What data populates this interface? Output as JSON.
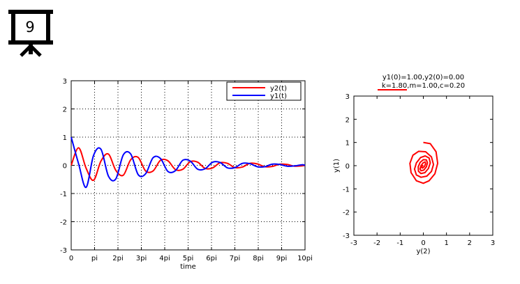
{
  "slide_badge": {
    "number": "9",
    "icon": "projector-screen-icon"
  },
  "chart_data": [
    {
      "type": "line",
      "xlabel": "time",
      "ylabel": "",
      "xlim": [
        0,
        31.416
      ],
      "ylim": [
        -3,
        3
      ],
      "x_tick_labels": [
        "0",
        "pi",
        "2pi",
        "3pi",
        "4pi",
        "5pi",
        "6pi",
        "7pi",
        "8pi",
        "9pi",
        "10pi"
      ],
      "y_tick_labels": [
        "-3",
        "-2",
        "-1",
        "0",
        "1",
        "2",
        "3"
      ],
      "grid": true,
      "legend_position": "top-right",
      "series": [
        {
          "name": "y2(t)",
          "color": "#ff0000",
          "x": [
            0,
            1,
            2,
            3,
            4,
            5,
            6,
            7,
            8,
            9,
            10,
            11,
            12,
            13,
            14,
            15,
            16,
            17,
            18,
            19,
            20,
            21,
            22,
            23,
            24,
            25,
            26,
            27,
            28,
            29,
            30,
            31,
            31.416
          ],
          "values": [
            0.0,
            0.62,
            -0.1,
            -0.53,
            0.15,
            0.4,
            -0.18,
            -0.35,
            0.2,
            0.28,
            -0.2,
            -0.2,
            0.18,
            0.16,
            -0.15,
            -0.14,
            0.13,
            0.11,
            -0.11,
            -0.09,
            0.09,
            0.07,
            -0.08,
            -0.06,
            0.07,
            0.05,
            -0.05,
            -0.04,
            0.04,
            0.03,
            -0.03,
            -0.02,
            0.0
          ]
        },
        {
          "name": "y1(t)",
          "color": "#0000ff",
          "x": [
            0,
            1,
            2,
            3,
            4,
            5,
            6,
            7,
            8,
            9,
            10,
            11,
            12,
            13,
            14,
            15,
            16,
            17,
            18,
            19,
            20,
            21,
            22,
            23,
            24,
            25,
            26,
            27,
            28,
            29,
            30,
            31,
            31.416
          ],
          "values": [
            1.0,
            0.05,
            -0.78,
            0.35,
            0.57,
            -0.38,
            -0.48,
            0.37,
            0.4,
            -0.33,
            -0.3,
            0.27,
            0.24,
            -0.22,
            -0.19,
            0.18,
            0.15,
            -0.14,
            -0.12,
            0.11,
            0.1,
            -0.09,
            -0.08,
            0.07,
            0.06,
            -0.05,
            -0.05,
            0.04,
            0.03,
            -0.03,
            -0.02,
            0.02,
            0.0
          ]
        }
      ]
    },
    {
      "type": "line",
      "title": "y1(0)=1.00,y2(0)=0.00",
      "subtitle": "k=1.80,m=1.00,c=0.20",
      "subtitle_underline_color": "#ff0000",
      "xlabel": "y(2)",
      "ylabel": "y(1)",
      "xlim": [
        -3,
        3
      ],
      "ylim": [
        -3,
        3
      ],
      "x_tick_labels": [
        "-3",
        "-2",
        "-1",
        "0",
        "1",
        "2",
        "3"
      ],
      "y_tick_labels": [
        "-3",
        "-2",
        "-1",
        "0",
        "1",
        "2",
        "3"
      ],
      "grid": false,
      "series": [
        {
          "name": "",
          "color": "#ff0000",
          "x": [
            0.0,
            0.3,
            0.55,
            0.62,
            0.5,
            0.25,
            0.0,
            -0.3,
            -0.53,
            -0.58,
            -0.45,
            -0.2,
            0.1,
            0.35,
            0.44,
            0.35,
            0.15,
            -0.1,
            -0.3,
            -0.38,
            -0.3,
            -0.12,
            0.08,
            0.25,
            0.3,
            0.22,
            0.07,
            -0.1,
            -0.21,
            -0.22,
            -0.14,
            0.0,
            0.13,
            0.18,
            0.13,
            0.02,
            -0.1,
            -0.14,
            -0.1,
            0.0,
            0.08,
            0.1,
            0.05,
            -0.03,
            -0.07,
            -0.05,
            0.0
          ],
          "values": [
            1.0,
            0.95,
            0.6,
            0.1,
            -0.35,
            -0.65,
            -0.76,
            -0.65,
            -0.3,
            0.1,
            0.45,
            0.62,
            0.6,
            0.38,
            0.05,
            -0.25,
            -0.45,
            -0.5,
            -0.4,
            -0.15,
            0.12,
            0.35,
            0.42,
            0.33,
            0.12,
            -0.12,
            -0.3,
            -0.34,
            -0.24,
            -0.05,
            0.14,
            0.26,
            0.25,
            0.12,
            -0.05,
            -0.19,
            -0.22,
            -0.14,
            0.0,
            0.13,
            0.16,
            0.09,
            -0.03,
            -0.1,
            -0.08,
            0.0,
            0.0
          ]
        }
      ]
    }
  ]
}
